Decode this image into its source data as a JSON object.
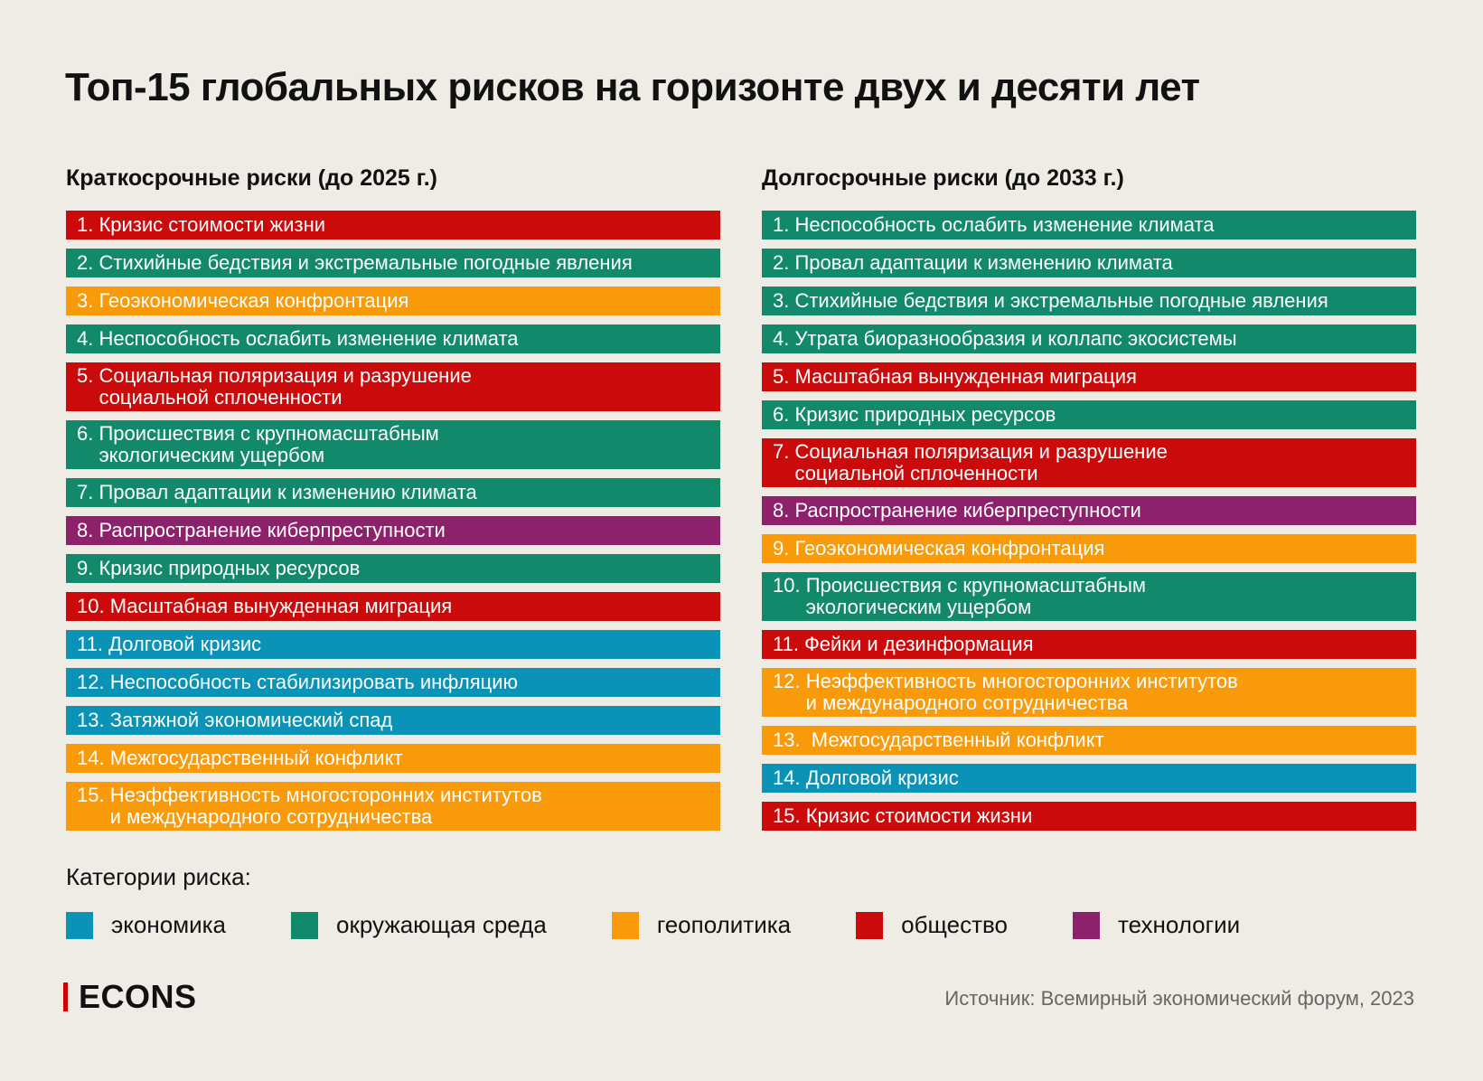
{
  "title": "Топ-15 глобальных рисков на горизонте двух и десяти лет",
  "colors": {
    "economy": "#0a93b6",
    "environment": "#13896b",
    "geopolitics": "#f89a0a",
    "society": "#cb0b0b",
    "technology": "#8e216c"
  },
  "short_term": {
    "header": "Краткосрочные риски (до 2025 г.)",
    "items": [
      {
        "label": "1. Кризис стоимости жизни",
        "category": "society"
      },
      {
        "label": "2. Стихийные бедствия и экстремальные погодные явления",
        "category": "environment"
      },
      {
        "label": "3. Геоэкономическая конфронтация",
        "category": "geopolitics"
      },
      {
        "label": "4. Неспособность ослабить изменение климата",
        "category": "environment"
      },
      {
        "label": "5. Социальная поляризация и разрушение\n    социальной сплоченности",
        "category": "society"
      },
      {
        "label": "6. Происшествия с крупномасштабным\n    экологическим ущербом",
        "category": "environment"
      },
      {
        "label": "7. Провал адаптации к изменению климата",
        "category": "environment"
      },
      {
        "label": "8. Распространение киберпреступности",
        "category": "technology"
      },
      {
        "label": "9. Кризис природных ресурсов",
        "category": "environment"
      },
      {
        "label": "10. Масштабная вынужденная миграция",
        "category": "society"
      },
      {
        "label": "11. Долговой кризис",
        "category": "economy"
      },
      {
        "label": "12. Неспособность стабилизировать инфляцию",
        "category": "economy"
      },
      {
        "label": "13. Затяжной экономический спад",
        "category": "economy"
      },
      {
        "label": "14. Межгосударственный конфликт",
        "category": "geopolitics"
      },
      {
        "label": "15. Неэффективность многосторонних институтов\n      и международного сотрудничества",
        "category": "geopolitics"
      }
    ]
  },
  "long_term": {
    "header": "Долгосрочные риски (до 2033 г.)",
    "items": [
      {
        "label": "1. Неспособность ослабить изменение климата",
        "category": "environment"
      },
      {
        "label": "2. Провал адаптации к изменению климата",
        "category": "environment"
      },
      {
        "label": "3. Стихийные бедствия и экстремальные погодные явления",
        "category": "environment"
      },
      {
        "label": "4. Утрата биоразнообразия и коллапс экосистемы",
        "category": "environment"
      },
      {
        "label": "5. Масштабная вынужденная миграция",
        "category": "society"
      },
      {
        "label": "6. Кризис природных ресурсов",
        "category": "environment"
      },
      {
        "label": "7. Социальная поляризация и разрушение\n    социальной сплоченности",
        "category": "society"
      },
      {
        "label": "8. Распространение киберпреступности",
        "category": "technology"
      },
      {
        "label": "9. Геоэкономическая конфронтация",
        "category": "geopolitics"
      },
      {
        "label": "10. Происшествия с крупномасштабным\n      экологическим ущербом",
        "category": "environment"
      },
      {
        "label": "11. Фейки и дезинформация",
        "category": "society"
      },
      {
        "label": "12. Неэффективность многосторонних институтов\n      и международного сотрудничества",
        "category": "geopolitics"
      },
      {
        "label": "13.  Межгосударственный конфликт",
        "category": "geopolitics"
      },
      {
        "label": "14. Долговой кризис",
        "category": "economy"
      },
      {
        "label": "15. Кризис стоимости жизни",
        "category": "society"
      }
    ]
  },
  "legend": {
    "title": "Категории риска:",
    "items": [
      {
        "label": "экономика",
        "category": "economy"
      },
      {
        "label": "окружающая среда",
        "category": "environment"
      },
      {
        "label": "геополитика",
        "category": "geopolitics"
      },
      {
        "label": "общество",
        "category": "society"
      },
      {
        "label": "технологии",
        "category": "technology"
      }
    ]
  },
  "brand": "ECONS",
  "source": "Источник: Всемирный экономический форум, 2023"
}
